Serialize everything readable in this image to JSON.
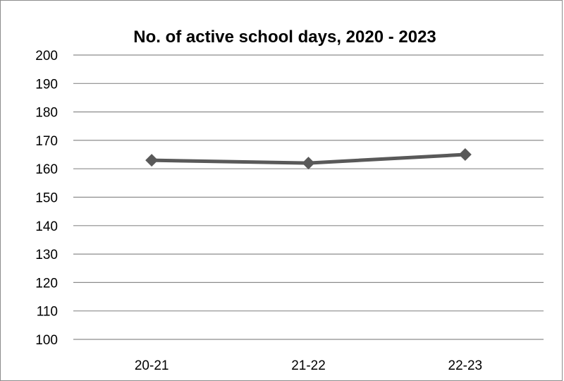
{
  "chart_data": {
    "type": "line",
    "title": "No. of active school days, 2020 - 2023",
    "xlabel": "",
    "ylabel": "",
    "categories": [
      "20-21",
      "21-22",
      "22-23"
    ],
    "series": [
      {
        "values": [
          163,
          162,
          165
        ],
        "color": "#595959",
        "marker": "diamond"
      }
    ],
    "ylim": [
      100,
      200
    ],
    "yticks": [
      200,
      190,
      180,
      170,
      160,
      150,
      140,
      130,
      120,
      110,
      100
    ],
    "grid": true,
    "legend": "none"
  }
}
